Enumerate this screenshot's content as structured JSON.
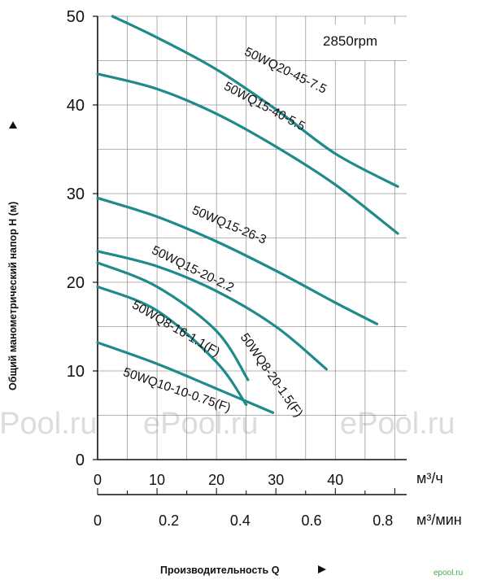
{
  "chart_data": {
    "type": "line",
    "rpm_label": "2850rpm",
    "ylabel": "Общий манометрический напор H (м)",
    "xlabel": "Производительность Q",
    "x_unit_primary": "м³/ч",
    "x_unit_secondary": "м³/мин",
    "ylim": [
      0,
      50
    ],
    "xlim": [
      0,
      52
    ],
    "y_ticks": [
      "0",
      "10",
      "20",
      "30",
      "40",
      "50"
    ],
    "x_ticks_primary": [
      "0",
      "10",
      "20",
      "30",
      "40"
    ],
    "x_ticks_secondary": [
      "0",
      "0.2",
      "0.4",
      "0.6",
      "0.8"
    ],
    "series_color": "#1f8a8a",
    "grid": true,
    "series": [
      {
        "name": "50WQ20-45-7.5",
        "x": [
          2.5,
          10,
          20,
          30,
          40,
          50.5
        ],
        "y": [
          50,
          47.6,
          44,
          39.5,
          34.5,
          30.8
        ]
      },
      {
        "name": "50WQ15-40-5.5",
        "x": [
          0,
          10,
          20,
          30,
          40,
          50.5
        ],
        "y": [
          43.5,
          41.8,
          39,
          35.3,
          31,
          25.5
        ]
      },
      {
        "name": "50WQ15-26-3",
        "x": [
          0,
          10,
          20,
          30,
          40,
          47
        ],
        "y": [
          29.5,
          27.4,
          24.6,
          21.3,
          17.7,
          15.3
        ]
      },
      {
        "name": "50WQ15-20-2.2",
        "x": [
          0,
          10,
          20,
          30,
          38.5
        ],
        "y": [
          23.5,
          21.8,
          19,
          15,
          10.2
        ]
      },
      {
        "name": "50WQ8-20-1.5(F)",
        "x": [
          0,
          10,
          20,
          25.3
        ],
        "y": [
          22.2,
          19.5,
          14.5,
          9
        ]
      },
      {
        "name": "50WQ8-16-1.1(F)",
        "x": [
          0,
          10,
          20,
          25
        ],
        "y": [
          19.5,
          16.8,
          11,
          6.2
        ]
      },
      {
        "name": "50WQ10-10-0.75(F)",
        "x": [
          0,
          10,
          20,
          29.5
        ],
        "y": [
          13.2,
          10.8,
          8,
          5.3
        ]
      }
    ]
  },
  "watermarks": [
    "ePool.ru",
    "ePool.ru",
    "ePool.ru"
  ],
  "logo_text": "epool.ru"
}
